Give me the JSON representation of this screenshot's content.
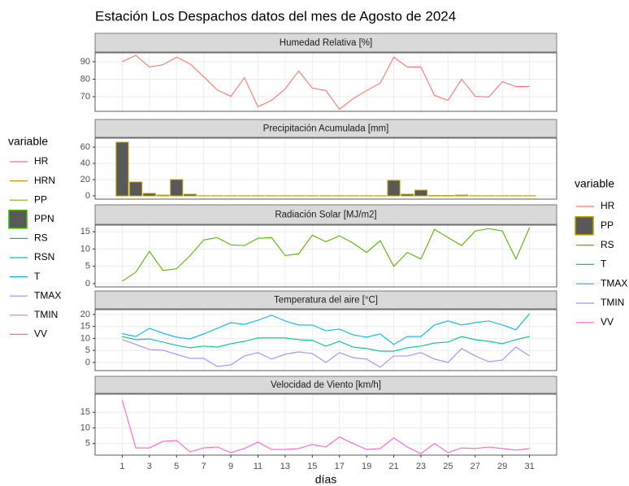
{
  "title": "Estación Los Despachos datos del mes de Agosto de 2024",
  "x_label": "días",
  "legends": [
    {
      "title": "variable",
      "entries": [
        {
          "name": "HR",
          "color": "#F8766D",
          "key": "line"
        },
        {
          "name": "HRN",
          "color": "#D89000",
          "key": "line"
        },
        {
          "name": "PP",
          "color": "#A3A500",
          "key": "line"
        },
        {
          "name": "PPN",
          "color": "#39B600",
          "key": "box"
        },
        {
          "name": "RS",
          "color": "#00BF7D",
          "key": "line"
        },
        {
          "name": "RSN",
          "color": "#00BFC4",
          "key": "line"
        },
        {
          "name": "T",
          "color": "#00B0F6",
          "key": "line"
        },
        {
          "name": "TMAX",
          "color": "#9590FF",
          "key": "line"
        },
        {
          "name": "TMIN",
          "color": "#E76BF3",
          "key": "line"
        },
        {
          "name": "VV",
          "color": "#FF62BC",
          "key": "line"
        }
      ]
    },
    {
      "title": "variable",
      "entries": [
        {
          "name": "HR",
          "color": "#F8766D",
          "key": "line"
        },
        {
          "name": "PP",
          "color": "#B79F00",
          "key": "box"
        },
        {
          "name": "RS",
          "color": "#53B400",
          "key": "line"
        },
        {
          "name": "T",
          "color": "#00C094",
          "key": "line"
        },
        {
          "name": "TMAX",
          "color": "#00B6EB",
          "key": "line"
        },
        {
          "name": "TMIN",
          "color": "#A58AFF",
          "key": "line"
        },
        {
          "name": "VV",
          "color": "#FB61D7",
          "key": "line"
        }
      ]
    }
  ],
  "chart_data": [
    {
      "type": "line",
      "title": "Humedad Relativa [%]",
      "x": [
        1,
        2,
        3,
        4,
        5,
        6,
        7,
        8,
        9,
        10,
        11,
        12,
        13,
        14,
        15,
        16,
        17,
        18,
        19,
        20,
        21,
        22,
        23,
        24,
        25,
        26,
        27,
        28,
        29,
        30,
        31
      ],
      "series": [
        {
          "name": "HR",
          "color": "#F8766D",
          "values": [
            90,
            93.7,
            87,
            88.3,
            92.6,
            88.8,
            81.4,
            73.9,
            70.2,
            80.9,
            64.2,
            67.9,
            74.4,
            84.7,
            74.9,
            73.5,
            62.8,
            68.8,
            73.5,
            77.7,
            92.6,
            87,
            87,
            70.7,
            67.9,
            80,
            70.2,
            69.8,
            78.6,
            75.8,
            75.8
          ]
        }
      ],
      "xlim": [
        -1,
        33
      ],
      "xticks": [
        1,
        3,
        5,
        7,
        9,
        11,
        13,
        15,
        17,
        19,
        21,
        23,
        25,
        27,
        29,
        31
      ],
      "ylim": [
        61.6,
        95.1
      ],
      "yticks": [
        70,
        80,
        90
      ],
      "grid": true
    },
    {
      "type": "bar",
      "title": "Precipitación Acumulada [mm]",
      "x": [
        1,
        2,
        3,
        4,
        5,
        6,
        7,
        8,
        9,
        10,
        11,
        12,
        13,
        14,
        15,
        16,
        17,
        18,
        19,
        20,
        21,
        22,
        23,
        24,
        25,
        26,
        27,
        28,
        29,
        30,
        31
      ],
      "series": [
        {
          "name": "PP",
          "color": "#595959",
          "edge_color": "#B79F00",
          "values": [
            66,
            17,
            3,
            1,
            20,
            2,
            0.2,
            0.2,
            0.2,
            0.2,
            0.2,
            0.2,
            0.2,
            0.2,
            0.2,
            0.2,
            0.2,
            0.2,
            0.2,
            0.2,
            19,
            2,
            7,
            0.5,
            0.5,
            1,
            0.2,
            0.2,
            0.2,
            0.2,
            0.2
          ]
        }
      ],
      "xlim": [
        -1,
        33
      ],
      "xticks": [
        1,
        3,
        5,
        7,
        9,
        11,
        13,
        15,
        17,
        19,
        21,
        23,
        25,
        27,
        29,
        31
      ],
      "ylim": [
        -4,
        71
      ],
      "yticks": [
        0,
        20,
        40,
        60
      ],
      "grid": true
    },
    {
      "type": "line",
      "title": "Radiación Solar [MJ/m2]",
      "x": [
        1,
        2,
        3,
        4,
        5,
        6,
        7,
        8,
        9,
        10,
        11,
        12,
        13,
        14,
        15,
        16,
        17,
        18,
        19,
        20,
        21,
        22,
        23,
        24,
        25,
        26,
        27,
        28,
        29,
        30,
        31
      ],
      "series": [
        {
          "name": "RS",
          "color": "#53B400",
          "values": [
            0.7,
            3.3,
            9.3,
            3.8,
            4.3,
            8.1,
            12.6,
            13.3,
            11.2,
            11,
            13.1,
            13.3,
            8.1,
            8.6,
            14,
            12.1,
            13.8,
            11.7,
            9,
            12.4,
            5,
            9,
            7.1,
            15.7,
            13.3,
            11,
            15.2,
            15.9,
            15.2,
            7.1,
            16.2
          ]
        }
      ],
      "xlim": [
        -1,
        33
      ],
      "xticks": [
        1,
        3,
        5,
        7,
        9,
        11,
        13,
        15,
        17,
        19,
        21,
        23,
        25,
        27,
        29,
        31
      ],
      "ylim": [
        -0.95,
        16.9
      ],
      "yticks": [
        0,
        5,
        10,
        15
      ],
      "grid": true
    },
    {
      "type": "line",
      "title": "Temperatura del aire [°C]",
      "x": [
        1,
        2,
        3,
        4,
        5,
        6,
        7,
        8,
        9,
        10,
        11,
        12,
        13,
        14,
        15,
        16,
        17,
        18,
        19,
        20,
        21,
        22,
        23,
        24,
        25,
        26,
        27,
        28,
        29,
        30,
        31
      ],
      "series": [
        {
          "name": "TMAX",
          "color": "#00B6EB",
          "values": [
            12,
            10.8,
            14.2,
            12.2,
            10.5,
            9.8,
            11.9,
            14.2,
            16.6,
            15.9,
            17.6,
            19.7,
            17.3,
            15.6,
            15.6,
            13.2,
            13.9,
            11.5,
            10.5,
            11.9,
            7.5,
            10.8,
            10.8,
            15.6,
            17.3,
            15.6,
            16.6,
            17.3,
            15.6,
            13.6,
            20.3
          ]
        },
        {
          "name": "T",
          "color": "#00C094",
          "values": [
            10.8,
            9.5,
            9.8,
            8.5,
            7.1,
            6.1,
            6.8,
            6.4,
            7.8,
            8.8,
            10.2,
            10.2,
            10.2,
            9.5,
            9.2,
            6.8,
            8.8,
            6.4,
            5.8,
            4.7,
            4.7,
            6.1,
            6.8,
            8.1,
            8.5,
            10.8,
            9.5,
            8.8,
            7.8,
            9.5,
            10.8
          ]
        },
        {
          "name": "TMIN",
          "color": "#A58AFF",
          "values": [
            9.5,
            7.5,
            5.4,
            5.1,
            3.4,
            1.7,
            1.7,
            -1.7,
            -1,
            2.7,
            4.1,
            1.4,
            3.4,
            4.4,
            3.7,
            0,
            4.1,
            2,
            1.4,
            -2,
            2.7,
            2.7,
            4.1,
            1.4,
            0,
            5.8,
            2.7,
            0.3,
            1,
            6.4,
            2.7
          ]
        }
      ],
      "xlim": [
        -1,
        33
      ],
      "xticks": [
        1,
        3,
        5,
        7,
        9,
        11,
        13,
        15,
        17,
        19,
        21,
        23,
        25,
        27,
        29,
        31
      ],
      "ylim": [
        -3.4,
        22
      ],
      "yticks": [
        0,
        5,
        10,
        15,
        20
      ],
      "grid": true
    },
    {
      "type": "line",
      "title": "Velocidad de Viento [km/h]",
      "x": [
        1,
        2,
        3,
        4,
        5,
        6,
        7,
        8,
        9,
        10,
        11,
        12,
        13,
        14,
        15,
        16,
        17,
        18,
        19,
        20,
        21,
        22,
        23,
        24,
        25,
        26,
        27,
        28,
        29,
        30,
        31
      ],
      "series": [
        {
          "name": "VV",
          "color": "#FB61D7",
          "values": [
            18.9,
            3.6,
            3.6,
            5.7,
            6,
            2.3,
            3.6,
            3.9,
            2.1,
            3.4,
            5.5,
            3.1,
            3.1,
            3.4,
            4.7,
            3.9,
            7.1,
            5,
            3.1,
            3.4,
            6.8,
            3.9,
            1.8,
            5,
            2.1,
            3.6,
            3.4,
            3.9,
            3.4,
            2.9,
            3.4
          ]
        }
      ],
      "xlim": [
        -1,
        33
      ],
      "xticks": [
        1,
        3,
        5,
        7,
        9,
        11,
        13,
        15,
        17,
        19,
        21,
        23,
        25,
        27,
        29,
        31
      ],
      "ylim": [
        1.3,
        20.8
      ],
      "yticks": [
        5,
        10,
        15
      ],
      "grid": true
    }
  ]
}
